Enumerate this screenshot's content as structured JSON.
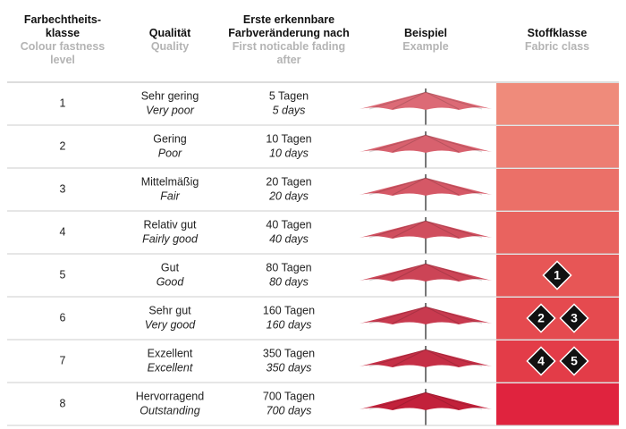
{
  "table": {
    "header": [
      {
        "de": [
          "Farbechtheits-",
          "klasse"
        ],
        "en": [
          "Colour fastness",
          "level"
        ]
      },
      {
        "de": [
          "Qualität"
        ],
        "en": [
          "Quality"
        ]
      },
      {
        "de": [
          "Erste erkennbare",
          "Farbveränderung nach"
        ],
        "en": [
          "First noticable fading",
          "after"
        ]
      },
      {
        "de": [
          "Beispiel"
        ],
        "en": [
          "Example"
        ]
      },
      {
        "de": [
          "Stoffklasse"
        ],
        "en": [
          "Fabric class"
        ]
      }
    ],
    "rows": [
      {
        "level": "1",
        "quality_de": "Sehr gering",
        "quality_en": "Very poor",
        "fading_de": "5 Tagen",
        "fading_en": "5 days",
        "class_color": "#ef8b7b",
        "umbrella_color": "#dc6a76",
        "badges": []
      },
      {
        "level": "2",
        "quality_de": "Gering",
        "quality_en": "Poor",
        "fading_de": "10 Tagen",
        "fading_en": "10 days",
        "class_color": "#ed7d72",
        "umbrella_color": "#d8616e",
        "badges": []
      },
      {
        "level": "3",
        "quality_de": "Mittelmäßig",
        "quality_en": "Fair",
        "fading_de": "20 Tagen",
        "fading_en": "20 days",
        "class_color": "#eb7068",
        "umbrella_color": "#d55866",
        "badges": []
      },
      {
        "level": "4",
        "quality_de": "Relativ gut",
        "quality_en": "Fairly good",
        "fading_de": "40 Tagen",
        "fading_en": "40 days",
        "class_color": "#e9635f",
        "umbrella_color": "#d04e5e",
        "badges": []
      },
      {
        "level": "5",
        "quality_de": "Gut",
        "quality_en": "Good",
        "fading_de": "80 Tagen",
        "fading_en": "80 days",
        "class_color": "#e75656",
        "umbrella_color": "#cc4456",
        "badges": [
          "1"
        ]
      },
      {
        "level": "6",
        "quality_de": "Sehr gut",
        "quality_en": "Very good",
        "fading_de": "160 Tagen",
        "fading_en": "160 days",
        "class_color": "#e54a4f",
        "umbrella_color": "#c83a4f",
        "badges": [
          "2",
          "3"
        ]
      },
      {
        "level": "7",
        "quality_de": "Exzellent",
        "quality_en": "Excellent",
        "fading_de": "350 Tagen",
        "fading_en": "350 days",
        "class_color": "#e33c48",
        "umbrella_color": "#c52f46",
        "badges": [
          "4",
          "5"
        ]
      },
      {
        "level": "8",
        "quality_de": "Hervorragend",
        "quality_en": "Outstanding",
        "fading_de": "700 Tagen",
        "fading_en": "700 days",
        "class_color": "#e0233e",
        "umbrella_color": "#c2213b",
        "badges": []
      }
    ]
  }
}
